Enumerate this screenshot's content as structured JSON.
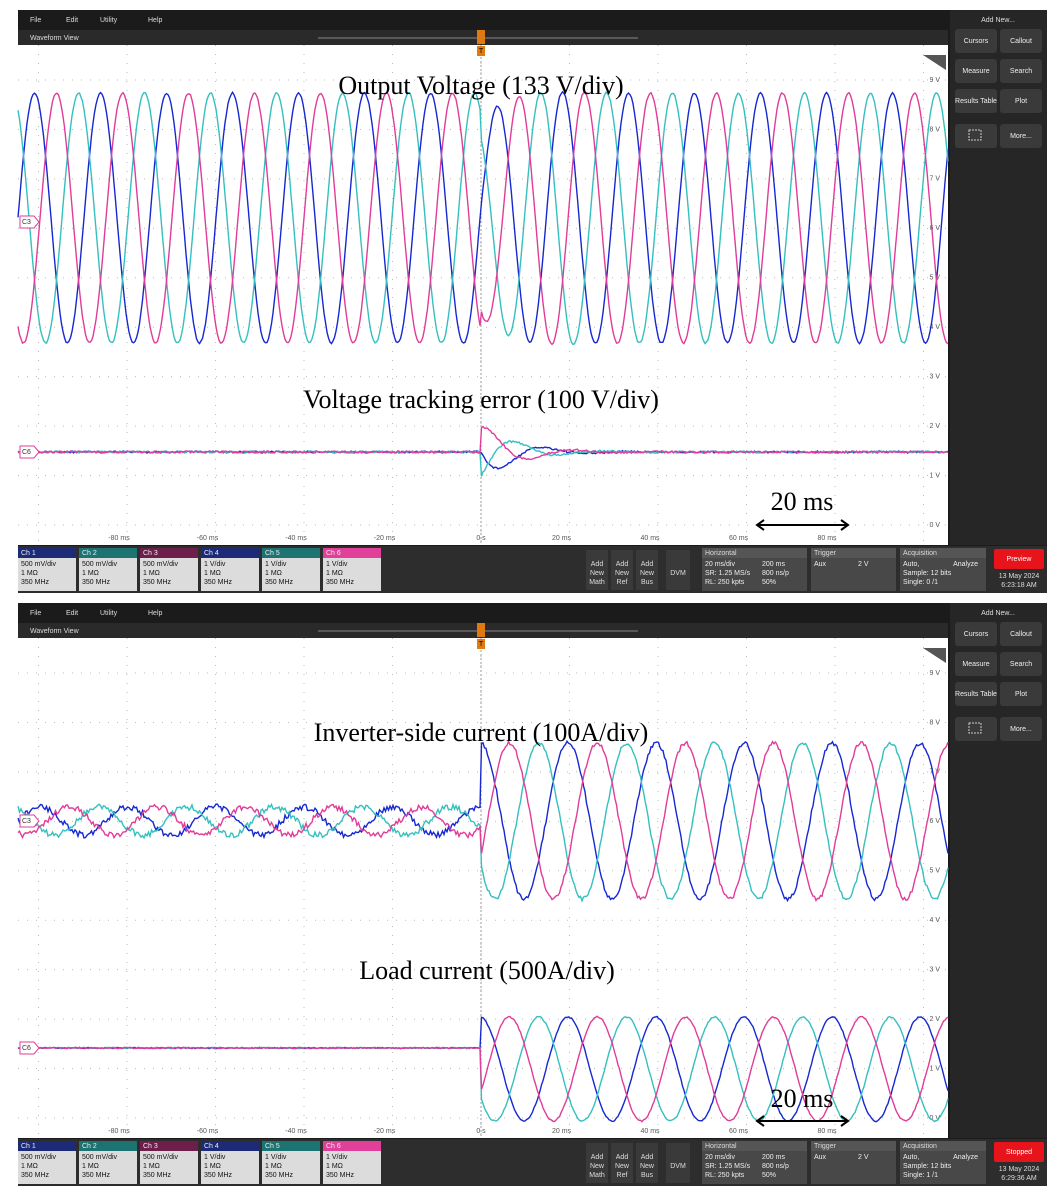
{
  "screens": [
    {
      "menu": [
        "File",
        "Edit",
        "Utility",
        "Help"
      ],
      "view_title": "Waveform View",
      "annotations": [
        "Output Voltage (133 V/div)",
        "Voltage tracking error (100 V/div)"
      ],
      "scale_bar": "20 ms",
      "y_labels": [
        "9 V",
        "8 V",
        "7 V",
        "6 V",
        "5 V",
        "4 V",
        "3 V",
        "2 V",
        "1 V",
        "0 V"
      ],
      "x_labels": [
        "-80 ms",
        "-60 ms",
        "-40 ms",
        "-20 ms",
        "0 s",
        "20 ms",
        "40 ms",
        "60 ms",
        "80 ms"
      ],
      "channel_markers": [
        "C3",
        "C6"
      ],
      "trigger_marker": "T",
      "channels": [
        {
          "name": "Ch 1",
          "scale": "500 mV/div",
          "impedance": "1 MΩ",
          "bandwidth": "350 MHz"
        },
        {
          "name": "Ch 2",
          "scale": "500 mV/div",
          "impedance": "1 MΩ",
          "bandwidth": "350 MHz"
        },
        {
          "name": "Ch 3",
          "scale": "500 mV/div",
          "impedance": "1 MΩ",
          "bandwidth": "350 MHz"
        },
        {
          "name": "Ch 4",
          "scale": "1 V/div",
          "impedance": "1 MΩ",
          "bandwidth": "350 MHz"
        },
        {
          "name": "Ch 5",
          "scale": "1 V/div",
          "impedance": "1 MΩ",
          "bandwidth": "350 MHz"
        },
        {
          "name": "Ch 6",
          "scale": "1 V/div",
          "impedance": "1 MΩ",
          "bandwidth": "350 MHz"
        }
      ],
      "add_buttons": [
        [
          "Add",
          "New",
          "Math"
        ],
        [
          "Add",
          "New",
          "Ref"
        ],
        [
          "Add",
          "New",
          "Bus"
        ]
      ],
      "dvm": "DVM",
      "horizontal": {
        "title": "Horizontal",
        "lines": [
          "20 ms/div",
          "200 ms",
          "SR: 1.25 MS/s",
          "800 ns/p",
          "RL: 250 kpts",
          "50%"
        ]
      },
      "trigger": {
        "title": "Trigger",
        "source": "Aux",
        "level": "2 V"
      },
      "acquisition": {
        "title": "Acquisition",
        "lines": [
          "Auto,",
          "Analyze",
          "Sample: 12 bits",
          "Single: 0 /1"
        ]
      },
      "status": "Preview",
      "date": "13 May 2024",
      "time": "6:23:18 AM",
      "sidebar": {
        "title": "Add New...",
        "buttons": [
          "Cursors",
          "Callout",
          "Measure",
          "Search",
          "Results Table",
          "Plot",
          "More..."
        ]
      }
    },
    {
      "menu": [
        "File",
        "Edit",
        "Utility",
        "Help"
      ],
      "view_title": "Waveform View",
      "annotations": [
        "Inverter-side current (100A/div)",
        "Load current (500A/div)"
      ],
      "scale_bar": "20 ms",
      "y_labels": [
        "9 V",
        "8 V",
        "7 V",
        "6 V",
        "5 V",
        "4 V",
        "3 V",
        "2 V",
        "1 V",
        "0 V"
      ],
      "x_labels": [
        "-80 ms",
        "-60 ms",
        "-40 ms",
        "-20 ms",
        "0 s",
        "20 ms",
        "40 ms",
        "60 ms",
        "80 ms"
      ],
      "channel_markers": [
        "C3",
        "C6"
      ],
      "trigger_marker": "T",
      "channels": [
        {
          "name": "Ch 1",
          "scale": "500 mV/div",
          "impedance": "1 MΩ",
          "bandwidth": "350 MHz"
        },
        {
          "name": "Ch 2",
          "scale": "500 mV/div",
          "impedance": "1 MΩ",
          "bandwidth": "350 MHz"
        },
        {
          "name": "Ch 3",
          "scale": "500 mV/div",
          "impedance": "1 MΩ",
          "bandwidth": "350 MHz"
        },
        {
          "name": "Ch 4",
          "scale": "1 V/div",
          "impedance": "1 MΩ",
          "bandwidth": "350 MHz"
        },
        {
          "name": "Ch 5",
          "scale": "1 V/div",
          "impedance": "1 MΩ",
          "bandwidth": "350 MHz"
        },
        {
          "name": "Ch 6",
          "scale": "1 V/div",
          "impedance": "1 MΩ",
          "bandwidth": "350 MHz"
        }
      ],
      "add_buttons": [
        [
          "Add",
          "New",
          "Math"
        ],
        [
          "Add",
          "New",
          "Ref"
        ],
        [
          "Add",
          "New",
          "Bus"
        ]
      ],
      "dvm": "DVM",
      "horizontal": {
        "title": "Horizontal",
        "lines": [
          "20 ms/div",
          "200 ms",
          "SR: 1.25 MS/s",
          "800 ns/p",
          "RL: 250 kpts",
          "50%"
        ]
      },
      "trigger": {
        "title": "Trigger",
        "source": "Aux",
        "level": "2 V"
      },
      "acquisition": {
        "title": "Acquisition",
        "lines": [
          "Auto,",
          "Analyze",
          "Sample: 12 bits",
          "Single: 1 /1"
        ]
      },
      "status": "Stopped",
      "date": "13 May 2024",
      "time": "6:29:36 AM",
      "sidebar": {
        "title": "Add New...",
        "buttons": [
          "Cursors",
          "Callout",
          "Measure",
          "Search",
          "Results Table",
          "Plot",
          "More..."
        ]
      }
    }
  ]
}
